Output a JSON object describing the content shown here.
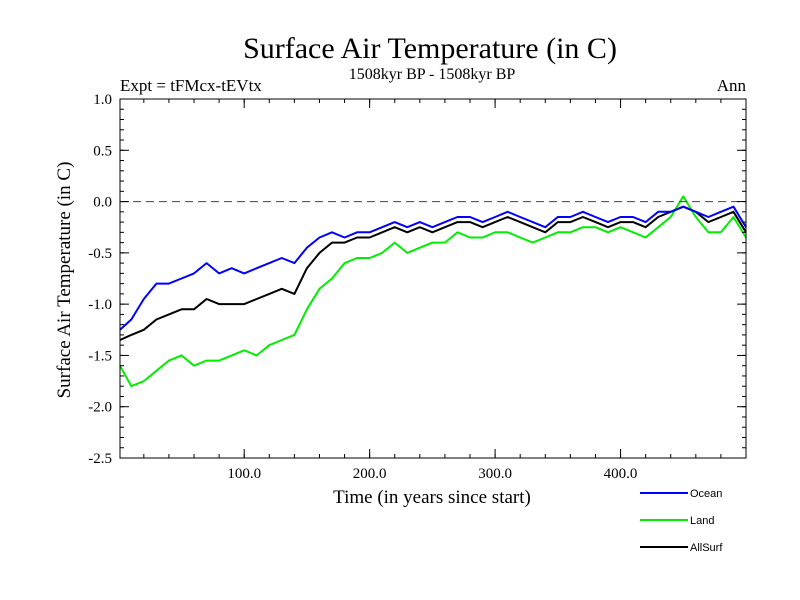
{
  "chart_data": {
    "type": "line",
    "title": "Surface Air Temperature (in C)",
    "subtitle": "1508kyr BP - 1508kyr BP",
    "left_label": "Expt = tFMcx-tEVtx",
    "right_label": "Ann",
    "xlabel": "Time (in years since start)",
    "ylabel": "Surface Air Temperature (in C)",
    "xlim": [
      1,
      500
    ],
    "ylim": [
      -2.5,
      1.0
    ],
    "x_ticks": [
      100,
      200,
      300,
      400
    ],
    "x_tick_labels": [
      "100.0",
      "200.0",
      "300.0",
      "400.0"
    ],
    "y_ticks": [
      -2.5,
      -2.0,
      -1.5,
      -1.0,
      -0.5,
      0.0,
      0.5,
      1.0
    ],
    "y_tick_labels": [
      "-2.5",
      "-2.0",
      "-1.5",
      "-1.0",
      "-0.5",
      "0.0",
      "0.5",
      "1.0"
    ],
    "reference_line": 0.0,
    "grid": false,
    "legend_placement": "bottom-right, outside plot",
    "series": [
      {
        "name": "Ocean",
        "color": "#0000ff",
        "x": [
          1,
          10,
          20,
          30,
          40,
          50,
          60,
          70,
          80,
          90,
          100,
          110,
          120,
          130,
          140,
          150,
          160,
          170,
          180,
          190,
          200,
          210,
          220,
          230,
          240,
          250,
          260,
          270,
          280,
          290,
          300,
          310,
          320,
          330,
          340,
          350,
          360,
          370,
          380,
          390,
          400,
          410,
          420,
          430,
          440,
          450,
          460,
          470,
          480,
          490,
          500
        ],
        "values": [
          -1.25,
          -1.15,
          -0.95,
          -0.8,
          -0.8,
          -0.75,
          -0.7,
          -0.6,
          -0.7,
          -0.65,
          -0.7,
          -0.65,
          -0.6,
          -0.55,
          -0.6,
          -0.45,
          -0.35,
          -0.3,
          -0.35,
          -0.3,
          -0.3,
          -0.25,
          -0.2,
          -0.25,
          -0.2,
          -0.25,
          -0.2,
          -0.15,
          -0.15,
          -0.2,
          -0.15,
          -0.1,
          -0.15,
          -0.2,
          -0.25,
          -0.15,
          -0.15,
          -0.1,
          -0.15,
          -0.2,
          -0.15,
          -0.15,
          -0.2,
          -0.1,
          -0.1,
          -0.05,
          -0.1,
          -0.15,
          -0.1,
          -0.05,
          -0.25
        ]
      },
      {
        "name": "Land",
        "color": "#00ee00",
        "x": [
          1,
          10,
          20,
          30,
          40,
          50,
          60,
          70,
          80,
          90,
          100,
          110,
          120,
          130,
          140,
          150,
          160,
          170,
          180,
          190,
          200,
          210,
          220,
          230,
          240,
          250,
          260,
          270,
          280,
          290,
          300,
          310,
          320,
          330,
          340,
          350,
          360,
          370,
          380,
          390,
          400,
          410,
          420,
          430,
          440,
          450,
          460,
          470,
          480,
          490,
          500
        ],
        "values": [
          -1.6,
          -1.8,
          -1.75,
          -1.65,
          -1.55,
          -1.5,
          -1.6,
          -1.55,
          -1.55,
          -1.5,
          -1.45,
          -1.5,
          -1.4,
          -1.35,
          -1.3,
          -1.05,
          -0.85,
          -0.75,
          -0.6,
          -0.55,
          -0.55,
          -0.5,
          -0.4,
          -0.5,
          -0.45,
          -0.4,
          -0.4,
          -0.3,
          -0.35,
          -0.35,
          -0.3,
          -0.3,
          -0.35,
          -0.4,
          -0.35,
          -0.3,
          -0.3,
          -0.25,
          -0.25,
          -0.3,
          -0.25,
          -0.3,
          -0.35,
          -0.25,
          -0.15,
          0.05,
          -0.15,
          -0.3,
          -0.3,
          -0.15,
          -0.35
        ]
      },
      {
        "name": "AllSurf",
        "color": "#000000",
        "x": [
          1,
          10,
          20,
          30,
          40,
          50,
          60,
          70,
          80,
          90,
          100,
          110,
          120,
          130,
          140,
          150,
          160,
          170,
          180,
          190,
          200,
          210,
          220,
          230,
          240,
          250,
          260,
          270,
          280,
          290,
          300,
          310,
          320,
          330,
          340,
          350,
          360,
          370,
          380,
          390,
          400,
          410,
          420,
          430,
          440,
          450,
          460,
          470,
          480,
          490,
          500
        ],
        "values": [
          -1.35,
          -1.3,
          -1.25,
          -1.15,
          -1.1,
          -1.05,
          -1.05,
          -0.95,
          -1.0,
          -1.0,
          -1.0,
          -0.95,
          -0.9,
          -0.85,
          -0.9,
          -0.65,
          -0.5,
          -0.4,
          -0.4,
          -0.35,
          -0.35,
          -0.3,
          -0.25,
          -0.3,
          -0.25,
          -0.3,
          -0.25,
          -0.2,
          -0.2,
          -0.25,
          -0.2,
          -0.15,
          -0.2,
          -0.25,
          -0.3,
          -0.2,
          -0.2,
          -0.15,
          -0.2,
          -0.25,
          -0.2,
          -0.2,
          -0.25,
          -0.15,
          -0.1,
          -0.05,
          -0.1,
          -0.2,
          -0.15,
          -0.1,
          -0.3
        ]
      }
    ]
  }
}
